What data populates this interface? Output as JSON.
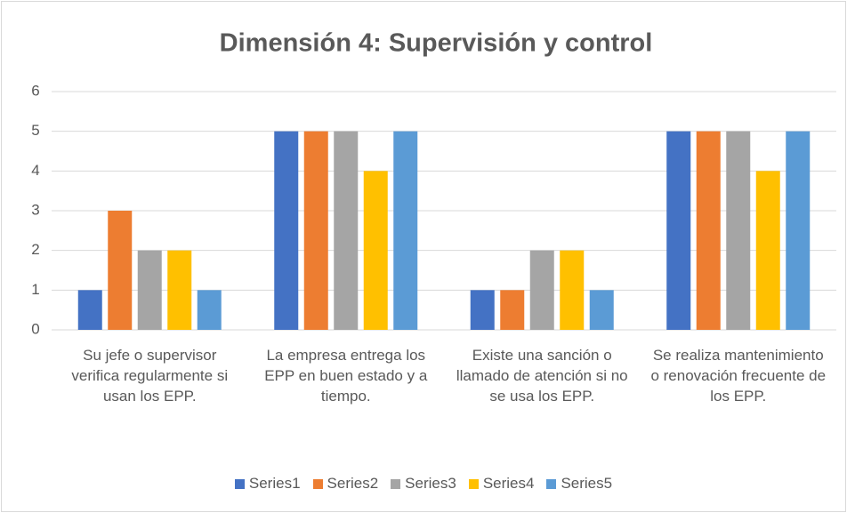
{
  "chart_data": {
    "type": "bar",
    "title": "Dimensión 4: Supervisión y control",
    "categories": [
      "Su jefe o supervisor verifica regularmente si usan los EPP.",
      "La empresa entrega los EPP en buen estado y a tiempo.",
      "Existe una sanción o llamado de atención si no se usa los EPP.",
      "Se realiza mantenimiento o renovación frecuente de los EPP."
    ],
    "series": [
      {
        "name": "Series1",
        "color": "#4472c4",
        "values": [
          1,
          5,
          1,
          5
        ]
      },
      {
        "name": "Series2",
        "color": "#ed7d31",
        "values": [
          3,
          5,
          1,
          5
        ]
      },
      {
        "name": "Series3",
        "color": "#a5a5a5",
        "values": [
          2,
          5,
          2,
          5
        ]
      },
      {
        "name": "Series4",
        "color": "#ffc000",
        "values": [
          2,
          4,
          2,
          4
        ]
      },
      {
        "name": "Series5",
        "color": "#5b9bd5",
        "values": [
          1,
          5,
          1,
          5
        ]
      }
    ],
    "ylim": [
      0,
      6
    ],
    "yticks": [
      0,
      1,
      2,
      3,
      4,
      5,
      6
    ],
    "grid": true,
    "legend": "bottom"
  }
}
